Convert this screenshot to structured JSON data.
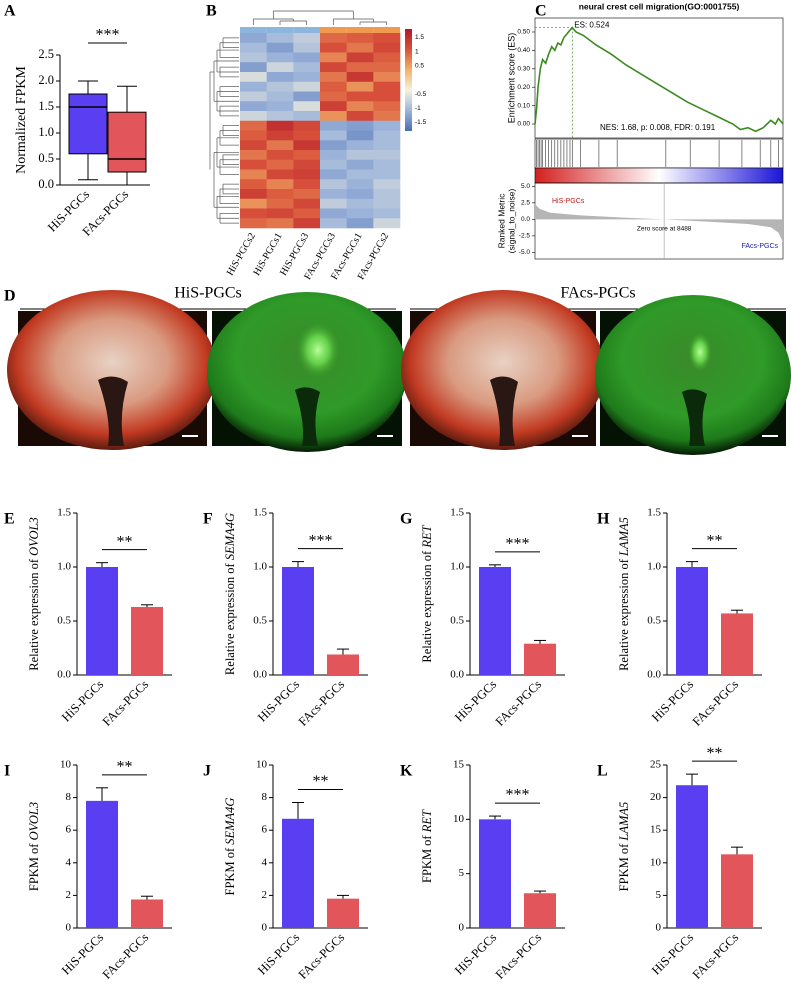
{
  "images": {
    "label": "D",
    "groups": [
      {
        "title": "HiS-PGCs"
      },
      {
        "title": "FAcs-PGCs"
      }
    ]
  },
  "chart_data": [
    {
      "type": "box",
      "label": "A",
      "ylabel": "Normalized FPKM",
      "significance": "***",
      "categories": [
        "HiS-PGCs",
        "FAcs-PGCs"
      ],
      "colors": [
        "#5a3ff2",
        "#e2565b"
      ],
      "min": [
        0.1,
        0.0
      ],
      "q1": [
        0.6,
        0.25
      ],
      "median": [
        1.5,
        0.5
      ],
      "q3": [
        1.75,
        1.4
      ],
      "max": [
        2.0,
        1.9
      ],
      "ylim": [
        0,
        2.5
      ],
      "yticks": [
        {
          "value": 0,
          "label": "0.0"
        },
        {
          "value": 0.5,
          "label": "0.5"
        },
        {
          "value": 1,
          "label": "1.0"
        },
        {
          "value": 1.5,
          "label": "1.5"
        },
        {
          "value": 2,
          "label": "2.0"
        },
        {
          "value": 2.5,
          "label": "2.5"
        }
      ]
    },
    {
      "type": "heatmap",
      "label": "B",
      "columns": [
        "HiS-PGCs2",
        "HiS-PGCs1",
        "HiS-PGCs3",
        "FAcs-PGCs3",
        "FAcs-PGCs1",
        "FAcs-PGCs2"
      ],
      "column_colors": [
        "#8db6df",
        "#8db6df",
        "#8db6df",
        "#ef9a4f",
        "#ef9a4f",
        "#ef9a4f"
      ],
      "colors": [
        "#4a6cb3",
        "#9db4da",
        "#f6f2dc",
        "#f2b26a",
        "#d8513a",
        "#b2182b"
      ],
      "clim": [
        -1.8,
        1.8
      ],
      "cticks": [
        1.5,
        1,
        0.5,
        -0.5,
        -1,
        -1.5
      ],
      "values": [
        [
          -1.2,
          -1.0,
          -0.8,
          0.9,
          1.0,
          1.1
        ],
        [
          -1.0,
          -1.3,
          -0.9,
          1.1,
          0.8,
          1.2
        ],
        [
          -0.9,
          -1.1,
          -1.2,
          0.7,
          1.3,
          1.0
        ],
        [
          -1.3,
          -0.7,
          -1.0,
          1.2,
          0.9,
          0.9
        ],
        [
          -0.6,
          -1.2,
          -1.1,
          0.8,
          1.4,
          0.7
        ],
        [
          -1.1,
          -0.9,
          -0.7,
          1.0,
          0.6,
          1.1
        ],
        [
          -0.8,
          -1.0,
          -1.3,
          0.9,
          1.1,
          1.1
        ],
        [
          -1.2,
          -1.1,
          -0.6,
          1.3,
          0.7,
          0.9
        ],
        [
          -0.7,
          -0.9,
          -1.0,
          0.6,
          1.2,
          0.8
        ],
        [
          0.9,
          1.5,
          1.2,
          -1.2,
          -1.3,
          -1.1
        ],
        [
          1.0,
          1.3,
          1.1,
          -1.0,
          -1.4,
          -1.0
        ],
        [
          1.2,
          0.8,
          1.4,
          -1.3,
          -1.1,
          -1.0
        ],
        [
          0.8,
          1.1,
          1.0,
          -1.1,
          -0.9,
          -0.9
        ],
        [
          1.1,
          0.9,
          1.2,
          -1.0,
          -1.2,
          -1.0
        ],
        [
          0.7,
          1.2,
          1.3,
          -1.2,
          -1.0,
          -1.0
        ],
        [
          1.0,
          0.7,
          1.1,
          -0.9,
          -1.1,
          -0.8
        ],
        [
          1.3,
          1.0,
          0.9,
          -1.1,
          -1.2,
          -0.9
        ],
        [
          0.6,
          0.9,
          1.2,
          -0.8,
          -1.0,
          -0.9
        ],
        [
          1.1,
          1.2,
          1.0,
          -1.2,
          -1.1,
          -1.0
        ],
        [
          0.9,
          0.8,
          1.3,
          -1.0,
          -1.3,
          -0.7
        ]
      ]
    },
    {
      "type": "gsea",
      "label": "C",
      "title": "neural crest cell migration(GO:0001755)",
      "ylabel": "Enrichment score (ES)",
      "es_label": "ES: 0.524",
      "stats": "NES: 1.68, p: 0.008, FDR: 0.191",
      "color": "#3a8a1f",
      "xlim": [
        0,
        16300
      ],
      "ylim": [
        -0.076,
        0.576
      ],
      "yticks": [
        {
          "value": 0,
          "label": "0.00"
        },
        {
          "value": 0.1,
          "label": "0.10"
        },
        {
          "value": 0.2,
          "label": "0.20"
        },
        {
          "value": 0.3,
          "label": "0.30"
        },
        {
          "value": 0.4,
          "label": "0.40"
        },
        {
          "value": 0.5,
          "label": "0.50"
        }
      ],
      "x": [
        0,
        100,
        200,
        350,
        500,
        700,
        900,
        1100,
        1300,
        1500,
        1700,
        1900,
        2100,
        2300,
        2450,
        2700,
        3200,
        4000,
        5000,
        6000,
        7000,
        8000,
        9000,
        10000,
        11000,
        12000,
        13000,
        13500,
        14000,
        14500,
        15000,
        15500,
        15800,
        16000,
        16300
      ],
      "values": [
        0,
        0.08,
        0.2,
        0.3,
        0.35,
        0.33,
        0.38,
        0.42,
        0.4,
        0.44,
        0.43,
        0.47,
        0.49,
        0.51,
        0.524,
        0.5,
        0.48,
        0.43,
        0.38,
        0.32,
        0.27,
        0.22,
        0.17,
        0.12,
        0.08,
        0.04,
        0.0,
        -0.03,
        -0.02,
        -0.04,
        -0.02,
        0.02,
        0.0,
        0.03,
        0.0
      ],
      "hits": [
        100,
        200,
        300,
        400,
        500,
        700,
        900,
        1100,
        1300,
        1500,
        1700,
        1900,
        2100,
        2300,
        2450,
        3000,
        4200,
        5400,
        8600,
        10200,
        12100,
        13600,
        14800,
        15500,
        16000
      ],
      "metric": {
        "ylabel": [
          "Ranked Metric",
          "(signal_to_noise)"
        ],
        "ylim": [
          -6,
          5.5
        ],
        "yticks": [
          {
            "value": 5,
            "label": "5.0"
          },
          {
            "value": 2.5,
            "label": "2.5"
          },
          {
            "value": 0,
            "label": "0.0"
          },
          {
            "value": -2.5,
            "label": "-2.5"
          },
          {
            "value": -5,
            "label": "-5.0"
          }
        ],
        "x": [
          0,
          300,
          1000,
          3000,
          6000,
          8488,
          11000,
          14000,
          15500,
          16000,
          16300
        ],
        "values": [
          2.3,
          1.6,
          1.0,
          0.6,
          0.25,
          0,
          -0.3,
          -0.7,
          -1.2,
          -2.0,
          -3.5
        ],
        "pos_label": "HiS-PGCs",
        "neg_label": "FAcs-PGCs",
        "zero_label": "Zero score at 8488",
        "zero_x": 8488
      }
    },
    {
      "type": "bar",
      "label": "E",
      "ylabel": "Relative expression of ",
      "ylabel_gene": "OVOL3",
      "significance": "**",
      "categories": [
        "HiS-PGCs",
        "FAcs-PGCs"
      ],
      "colors": [
        "#5a3ff2",
        "#e2565b"
      ],
      "values": [
        1.0,
        0.63
      ],
      "errors": [
        0.04,
        0.02
      ],
      "ylim": [
        0,
        1.5
      ],
      "yticks": [
        {
          "value": 0,
          "label": "0.0"
        },
        {
          "value": 0.5,
          "label": "0.5"
        },
        {
          "value": 1,
          "label": "1.0"
        },
        {
          "value": 1.5,
          "label": "1.5"
        }
      ]
    },
    {
      "type": "bar",
      "label": "F",
      "ylabel": "Relative expression of ",
      "ylabel_gene": "SEMA4G",
      "significance": "***",
      "categories": [
        "HiS-PGCs",
        "FAcs-PGCs"
      ],
      "colors": [
        "#5a3ff2",
        "#e2565b"
      ],
      "values": [
        1.0,
        0.19
      ],
      "errors": [
        0.05,
        0.05
      ],
      "ylim": [
        0,
        1.5
      ],
      "yticks": [
        {
          "value": 0,
          "label": "0.0"
        },
        {
          "value": 0.5,
          "label": "0.5"
        },
        {
          "value": 1,
          "label": "1.0"
        },
        {
          "value": 1.5,
          "label": "1.5"
        }
      ]
    },
    {
      "type": "bar",
      "label": "G",
      "ylabel": "Relative expression of ",
      "ylabel_gene": "RET",
      "significance": "***",
      "categories": [
        "HiS-PGCs",
        "FAcs-PGCs"
      ],
      "colors": [
        "#5a3ff2",
        "#e2565b"
      ],
      "values": [
        1.0,
        0.29
      ],
      "errors": [
        0.02,
        0.03
      ],
      "ylim": [
        0,
        1.5
      ],
      "yticks": [
        {
          "value": 0,
          "label": "0.0"
        },
        {
          "value": 0.5,
          "label": "0.5"
        },
        {
          "value": 1,
          "label": "1.0"
        },
        {
          "value": 1.5,
          "label": "1.5"
        }
      ]
    },
    {
      "type": "bar",
      "label": "H",
      "ylabel": "Relative expression of ",
      "ylabel_gene": "LAMA5",
      "significance": "**",
      "categories": [
        "HiS-PGCs",
        "FAcs-PGCs"
      ],
      "colors": [
        "#5a3ff2",
        "#e2565b"
      ],
      "values": [
        1.0,
        0.57
      ],
      "errors": [
        0.05,
        0.03
      ],
      "ylim": [
        0,
        1.5
      ],
      "yticks": [
        {
          "value": 0,
          "label": "0.0"
        },
        {
          "value": 0.5,
          "label": "0.5"
        },
        {
          "value": 1,
          "label": "1.0"
        },
        {
          "value": 1.5,
          "label": "1.5"
        }
      ]
    },
    {
      "type": "bar",
      "label": "I",
      "ylabel": "FPKM of ",
      "ylabel_gene": "OVOL3",
      "significance": "**",
      "categories": [
        "HiS-PGCs",
        "FAcs-PGCs"
      ],
      "colors": [
        "#5a3ff2",
        "#e2565b"
      ],
      "values": [
        7.8,
        1.75
      ],
      "errors": [
        0.8,
        0.2
      ],
      "ylim": [
        0,
        10
      ],
      "yticks": [
        0,
        2,
        4,
        6,
        8,
        10
      ]
    },
    {
      "type": "bar",
      "label": "J",
      "ylabel": "FPKM of ",
      "ylabel_gene": "SEMA4G",
      "significance": "**",
      "categories": [
        "HiS-PGCs",
        "FAcs-PGCs"
      ],
      "colors": [
        "#5a3ff2",
        "#e2565b"
      ],
      "values": [
        6.7,
        1.8
      ],
      "errors": [
        1.0,
        0.2
      ],
      "ylim": [
        0,
        10
      ],
      "yticks": [
        0,
        2,
        4,
        6,
        8,
        10
      ]
    },
    {
      "type": "bar",
      "label": "K",
      "ylabel": "FPKM of ",
      "ylabel_gene": "RET",
      "significance": "***",
      "categories": [
        "HiS-PGCs",
        "FAcs-PGCs"
      ],
      "colors": [
        "#5a3ff2",
        "#e2565b"
      ],
      "values": [
        10.0,
        3.2
      ],
      "errors": [
        0.3,
        0.2
      ],
      "ylim": [
        0,
        15
      ],
      "yticks": [
        0,
        5,
        10,
        15
      ]
    },
    {
      "type": "bar",
      "label": "L",
      "ylabel": "FPKM of ",
      "ylabel_gene": "LAMA5",
      "significance": "**",
      "categories": [
        "HiS-PGCs",
        "FAcs-PGCs"
      ],
      "colors": [
        "#5a3ff2",
        "#e2565b"
      ],
      "values": [
        21.9,
        11.3
      ],
      "errors": [
        1.7,
        1.1
      ],
      "ylim": [
        0,
        25
      ],
      "yticks": [
        0,
        5,
        10,
        15,
        20,
        25
      ]
    }
  ]
}
